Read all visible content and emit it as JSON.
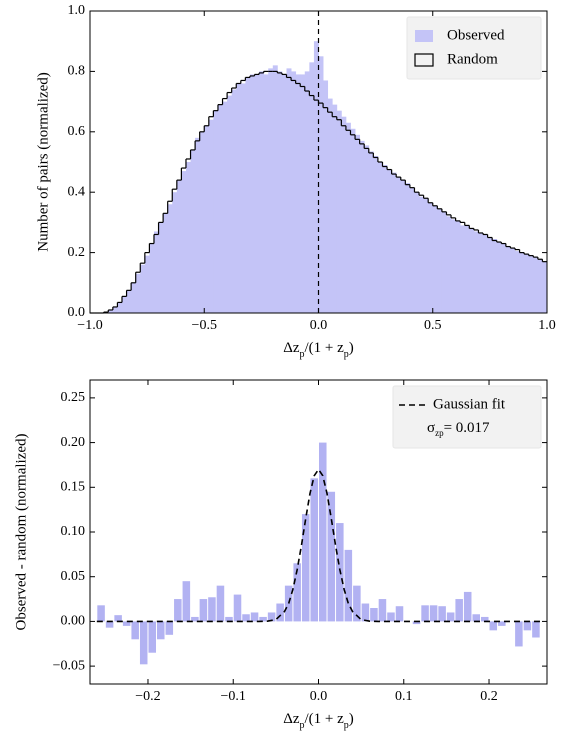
{
  "chart_data": [
    {
      "type": "histogram",
      "ylabel": "Number of pairs (normalized)",
      "xlabel": [
        "Δz",
        "p",
        "/(1 + z",
        "p",
        ")"
      ],
      "xlim": [
        -1,
        1
      ],
      "ylim": [
        0,
        1
      ],
      "xticks": [
        {
          "value": -1,
          "label": "−1.0"
        },
        {
          "value": -0.5,
          "label": "−0.5"
        },
        {
          "value": 0,
          "label": "0.0"
        },
        0.5,
        {
          "value": 1,
          "label": "1.0"
        }
      ],
      "yticks": [
        {
          "value": 0,
          "label": "0.0"
        },
        0.2,
        0.4,
        0.6,
        0.8,
        {
          "value": 1,
          "label": "1.0"
        }
      ],
      "legend": "upper right",
      "vline": 0,
      "bins": [
        -1,
        -0.98,
        -0.96,
        -0.94,
        -0.92,
        -0.9,
        -0.88,
        -0.86,
        -0.84,
        -0.82,
        -0.8,
        -0.78,
        -0.76,
        -0.74,
        -0.72,
        -0.7,
        -0.68,
        -0.66,
        -0.64,
        -0.62,
        -0.6,
        -0.58,
        -0.56,
        -0.54,
        -0.52,
        -0.5,
        -0.48,
        -0.46,
        -0.44,
        -0.42,
        -0.4,
        -0.38,
        -0.36,
        -0.34,
        -0.32,
        -0.3,
        -0.28,
        -0.26,
        -0.24,
        -0.22,
        -0.2,
        -0.18,
        -0.16,
        -0.14,
        -0.12,
        -0.1,
        -0.08,
        -0.06,
        -0.04,
        -0.02,
        0,
        0.02,
        0.04,
        0.06,
        0.08,
        0.1,
        0.12,
        0.14,
        0.16,
        0.18,
        0.2,
        0.22,
        0.24,
        0.26,
        0.28,
        0.3,
        0.32,
        0.34,
        0.36,
        0.38,
        0.4,
        0.42,
        0.44,
        0.46,
        0.48,
        0.5,
        0.52,
        0.54,
        0.56,
        0.58,
        0.6,
        0.62,
        0.64,
        0.66,
        0.68,
        0.7,
        0.72,
        0.74,
        0.76,
        0.78,
        0.8,
        0.82,
        0.84,
        0.86,
        0.88,
        0.9,
        0.92,
        0.94,
        0.96,
        0.98,
        1
      ],
      "series": [
        {
          "name": "Observed",
          "color": "#c4c4f7",
          "style": "bar",
          "values": [
            0,
            0,
            0,
            0.003,
            0.01,
            0.02,
            0.035,
            0.055,
            0.075,
            0.1,
            0.13,
            0.16,
            0.19,
            0.23,
            0.27,
            0.3,
            0.33,
            0.36,
            0.4,
            0.44,
            0.47,
            0.5,
            0.54,
            0.58,
            0.6,
            0.62,
            0.64,
            0.67,
            0.69,
            0.7,
            0.72,
            0.74,
            0.76,
            0.76,
            0.78,
            0.79,
            0.79,
            0.8,
            0.79,
            0.81,
            0.82,
            0.8,
            0.79,
            0.81,
            0.8,
            0.79,
            0.79,
            0.8,
            0.83,
            0.9,
            0.85,
            0.77,
            0.71,
            0.69,
            0.67,
            0.65,
            0.63,
            0.61,
            0.59,
            0.57,
            0.555,
            0.535,
            0.52,
            0.5,
            0.49,
            0.475,
            0.465,
            0.45,
            0.44,
            0.43,
            0.415,
            0.4,
            0.385,
            0.38,
            0.365,
            0.355,
            0.345,
            0.335,
            0.32,
            0.31,
            0.305,
            0.29,
            0.29,
            0.28,
            0.27,
            0.265,
            0.26,
            0.25,
            0.245,
            0.235,
            0.23,
            0.22,
            0.215,
            0.205,
            0.2,
            0.195,
            0.19,
            0.185,
            0.178,
            0.17
          ]
        },
        {
          "name": "Random",
          "color": "#000000",
          "style": "step",
          "values": [
            0,
            0,
            0,
            0.003,
            0.01,
            0.02,
            0.035,
            0.055,
            0.075,
            0.1,
            0.135,
            0.165,
            0.2,
            0.23,
            0.26,
            0.3,
            0.33,
            0.37,
            0.41,
            0.44,
            0.48,
            0.51,
            0.54,
            0.57,
            0.6,
            0.62,
            0.65,
            0.67,
            0.69,
            0.71,
            0.73,
            0.745,
            0.76,
            0.77,
            0.78,
            0.785,
            0.79,
            0.795,
            0.8,
            0.8,
            0.8,
            0.795,
            0.79,
            0.78,
            0.77,
            0.76,
            0.75,
            0.735,
            0.72,
            0.705,
            0.695,
            0.68,
            0.665,
            0.65,
            0.64,
            0.62,
            0.605,
            0.59,
            0.575,
            0.56,
            0.545,
            0.53,
            0.515,
            0.5,
            0.485,
            0.475,
            0.46,
            0.45,
            0.44,
            0.425,
            0.415,
            0.4,
            0.39,
            0.38,
            0.365,
            0.355,
            0.345,
            0.335,
            0.325,
            0.315,
            0.305,
            0.3,
            0.29,
            0.28,
            0.275,
            0.265,
            0.26,
            0.25,
            0.24,
            0.235,
            0.23,
            0.22,
            0.215,
            0.21,
            0.2,
            0.195,
            0.19,
            0.185,
            0.178,
            0.17
          ]
        }
      ]
    },
    {
      "type": "histogram",
      "ylabel": "Observed - random (normalized)",
      "xlabel": [
        "Δz",
        "p",
        "/(1 + z",
        "p",
        ")"
      ],
      "xlim": [
        -0.268,
        0.268
      ],
      "ylim": [
        -0.07,
        0.27
      ],
      "xticks": [
        {
          "value": -0.2,
          "label": "−0.2"
        },
        {
          "value": -0.1,
          "label": "−0.1"
        },
        {
          "value": 0,
          "label": "0.0"
        },
        0.1,
        0.2
      ],
      "yticks": [
        {
          "value": -0.05,
          "label": "−0.05"
        },
        {
          "value": 0,
          "label": "0.00"
        },
        0.05,
        {
          "value": 0.1,
          "label": "0.10"
        },
        0.15,
        {
          "value": 0.2,
          "label": "0.20"
        },
        0.25
      ],
      "legend": "upper right",
      "bins": [
        -0.26,
        -0.25,
        -0.24,
        -0.23,
        -0.22,
        -0.21,
        -0.2,
        -0.19,
        -0.18,
        -0.17,
        -0.16,
        -0.15,
        -0.14,
        -0.13,
        -0.12,
        -0.11,
        -0.1,
        -0.09,
        -0.08,
        -0.07,
        -0.06,
        -0.05,
        -0.04,
        -0.03,
        -0.02,
        -0.01,
        0,
        0.01,
        0.02,
        0.03,
        0.04,
        0.05,
        0.06,
        0.07,
        0.08,
        0.09,
        0.1,
        0.11,
        0.12,
        0.13,
        0.14,
        0.15,
        0.16,
        0.17,
        0.18,
        0.19,
        0.2,
        0.21,
        0.22,
        0.23,
        0.24,
        0.25,
        0.26
      ],
      "series": [
        {
          "color": "#b2b2f2",
          "style": "bar",
          "values": [
            0.018,
            -0.007,
            0.007,
            -0.005,
            -0.02,
            -0.048,
            -0.035,
            -0.02,
            -0.015,
            0.025,
            0.045,
            0.005,
            0.025,
            0.027,
            0.04,
            0.005,
            0.03,
            0.008,
            0.01,
            0.005,
            0.01,
            0.02,
            0.04,
            0.065,
            0.12,
            0.16,
            0.2,
            0.145,
            0.11,
            0.08,
            0.04,
            0.02,
            0.015,
            0.025,
            0.01,
            0.017,
            0,
            -0.003,
            0.018,
            0.018,
            0.017,
            0.01,
            0.025,
            0.033,
            0.008,
            0.005,
            -0.01,
            -0.005,
            0,
            -0.028,
            -0.01,
            -0.018
          ]
        }
      ],
      "lines": [
        {
          "name": "Gaussian fit",
          "color": "#000000",
          "style": "dashed",
          "x": [
            -0.26,
            -0.1,
            -0.07,
            -0.06,
            -0.05,
            -0.04,
            -0.035,
            -0.03,
            -0.025,
            -0.02,
            -0.015,
            -0.01,
            -0.005,
            0,
            0.005,
            0.01,
            0.015,
            0.02,
            0.025,
            0.03,
            0.035,
            0.04,
            0.05,
            0.06,
            0.07,
            0.1,
            0.26
          ],
          "values": [
            0,
            0,
            0,
            0.0003,
            0.002,
            0.011,
            0.02,
            0.036,
            0.058,
            0.085,
            0.115,
            0.143,
            0.163,
            0.17,
            0.163,
            0.143,
            0.115,
            0.085,
            0.058,
            0.036,
            0.02,
            0.011,
            0.002,
            0.0003,
            0,
            0,
            0
          ]
        }
      ],
      "annotation": {
        "symbol": "σ",
        "subscript": "zp",
        "text": "= 0.017"
      }
    }
  ]
}
